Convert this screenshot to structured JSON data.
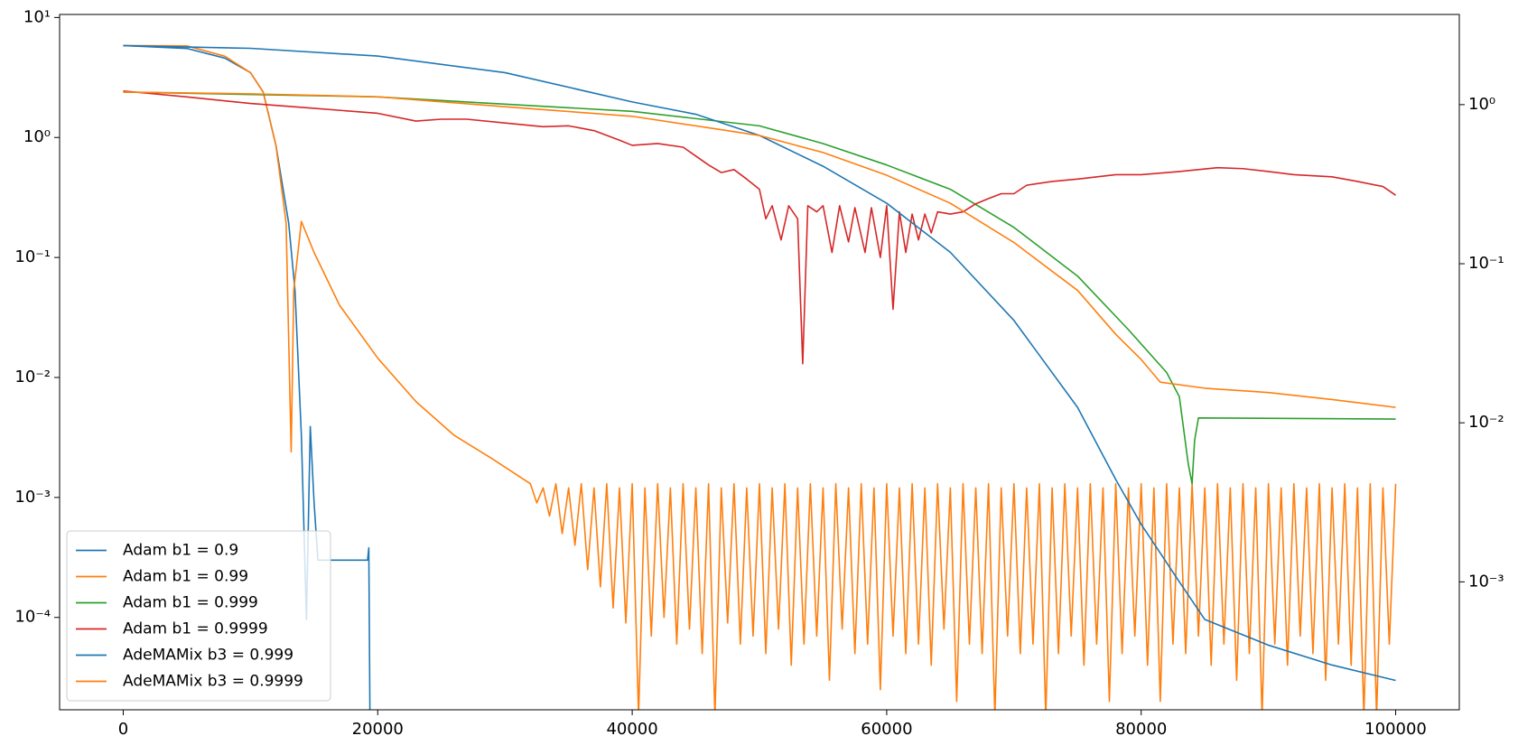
{
  "chart_data": {
    "type": "line",
    "xlim": [
      -5000,
      105000
    ],
    "xticks": [
      0,
      20000,
      40000,
      60000,
      80000,
      100000
    ],
    "yscale": "log",
    "ylim": [
      1.7e-05,
      10.6
    ],
    "yticks": [
      {
        "value": 0.0001,
        "label": "10⁻⁴"
      },
      {
        "value": 0.001,
        "label": "10⁻³"
      },
      {
        "value": 0.01,
        "label": "10⁻²"
      },
      {
        "value": 0.1,
        "label": "10⁻¹"
      },
      {
        "value": 1,
        "label": "10⁰"
      },
      {
        "value": 10,
        "label": "10¹"
      }
    ],
    "y2scale": "log",
    "y2lim": [
      0.000157,
      3.69
    ],
    "y2ticks": [
      {
        "value": 0.001,
        "label": "10⁻³"
      },
      {
        "value": 0.01,
        "label": "10⁻²"
      },
      {
        "value": 0.1,
        "label": "10⁻¹"
      },
      {
        "value": 1,
        "label": "10⁰"
      }
    ],
    "legend": "lower left",
    "series": [
      {
        "name": "Adam b1 = 0.9",
        "color": "#1f77b4",
        "x": [
          0,
          5000,
          8000,
          10000,
          11000,
          12000,
          13000,
          13500,
          14000,
          14400,
          14700,
          15000,
          15300,
          19200,
          19300,
          19400
        ],
        "values": [
          5.84,
          5.52,
          4.58,
          3.47,
          2.39,
          0.86,
          0.195,
          0.053,
          0.0033,
          9.6e-05,
          0.0039,
          0.0009,
          0.0003,
          0.0003,
          0.00038,
          1e-05
        ]
      },
      {
        "name": "Adam b1 = 0.99",
        "color": "#ff7f0e",
        "x": [
          0,
          5000,
          8000,
          10000,
          11000,
          12000,
          12800,
          13200,
          13400,
          14000,
          15000,
          17000,
          20000,
          23000,
          26000,
          29000,
          32000,
          32500,
          33000,
          33500,
          34000,
          34500,
          35000,
          35500,
          36000,
          36500,
          37000,
          37500,
          38000,
          38500,
          39000,
          39500,
          40000,
          40500,
          41000,
          41500,
          42000,
          42500,
          43000,
          43500,
          44000,
          44500,
          45000,
          45500,
          46000,
          46500,
          47000,
          47500,
          48000,
          48500,
          49000,
          49500,
          50000,
          50500,
          51000,
          51500,
          52000,
          52500,
          53000,
          53500,
          54000,
          54500,
          55000,
          55500,
          56000,
          56500,
          57000,
          57500,
          58000,
          58500,
          59000,
          59500,
          60000,
          60500,
          61000,
          61500,
          62000,
          62500,
          63000,
          63500,
          64000,
          64500,
          65000,
          65500,
          66000,
          66500,
          67000,
          67500,
          68000,
          68500,
          69000,
          69500,
          70000,
          70500,
          71000,
          71500,
          72000,
          72500,
          73000,
          73500,
          74000,
          74500,
          75000,
          75500,
          76000,
          76500,
          77000,
          77500,
          78000,
          78500,
          79000,
          79500,
          80000,
          80500,
          81000,
          81500,
          82000,
          82500,
          83000,
          83500,
          84000,
          84500,
          85000,
          85500,
          86000,
          86500,
          87000,
          87500,
          88000,
          88500,
          89000,
          89500,
          90000,
          90500,
          91000,
          91500,
          92000,
          92500,
          93000,
          93500,
          94000,
          94500,
          95000,
          95500,
          96000,
          96500,
          97000,
          97500,
          98000,
          98500,
          99000,
          99500,
          100000
        ],
        "values": [
          5.84,
          5.8,
          4.75,
          3.47,
          2.39,
          0.86,
          0.195,
          0.0024,
          0.053,
          0.2,
          0.11,
          0.04,
          0.0145,
          0.0063,
          0.0033,
          0.0021,
          0.0013,
          0.0009,
          0.0012,
          0.0007,
          0.0013,
          0.0005,
          0.0012,
          0.0004,
          0.0013,
          0.00025,
          0.0012,
          0.00018,
          0.0013,
          0.00012,
          0.0012,
          9e-05,
          0.0013,
          1.5e-05,
          0.0012,
          7e-05,
          0.0013,
          0.0001,
          0.0012,
          6e-05,
          0.0013,
          8e-05,
          0.0012,
          5e-05,
          0.0013,
          1.5e-05,
          0.0012,
          9e-05,
          0.0013,
          6e-05,
          0.0012,
          7e-05,
          0.0013,
          5e-05,
          0.0012,
          8e-05,
          0.0013,
          4e-05,
          0.0012,
          6e-05,
          0.0013,
          7e-05,
          0.0012,
          3e-05,
          0.0013,
          8e-05,
          0.0012,
          5e-05,
          0.0013,
          6e-05,
          0.0012,
          2.5e-05,
          0.0013,
          7e-05,
          0.0012,
          5e-05,
          0.0013,
          6e-05,
          0.0012,
          4e-05,
          0.0013,
          8e-05,
          0.0012,
          2e-05,
          0.0013,
          6e-05,
          0.0012,
          5e-05,
          0.0013,
          1.5e-05,
          0.0012,
          7e-05,
          0.0013,
          5e-05,
          0.0012,
          6e-05,
          0.0013,
          1.5e-05,
          0.0012,
          5e-05,
          0.0013,
          7e-05,
          0.0012,
          4e-05,
          0.0013,
          6e-05,
          0.0012,
          2e-05,
          0.0013,
          5e-05,
          0.0012,
          7e-05,
          0.0013,
          4e-05,
          0.0012,
          2e-05,
          0.0013,
          6e-05,
          0.0012,
          5e-05,
          0.0013,
          7e-05,
          0.0012,
          4e-05,
          0.0013,
          6e-05,
          0.0012,
          3e-05,
          0.0013,
          5e-05,
          0.0012,
          1.5e-05,
          0.0013,
          6e-05,
          0.0012,
          4e-05,
          0.0013,
          7e-05,
          0.0012,
          5e-05,
          0.0013,
          3e-05,
          0.0012,
          6e-05,
          0.0013,
          4e-05,
          0.0012,
          1.5e-05,
          0.0013,
          1.5e-05,
          0.0012,
          6e-05,
          0.0013
        ]
      },
      {
        "name": "Adam b1 = 0.999",
        "color": "#2ca02c",
        "x": [
          0,
          20000,
          40000,
          50000,
          55000,
          60000,
          65000,
          70000,
          75000,
          79000,
          82000,
          83000,
          83700,
          84000,
          84200,
          84500,
          100000
        ],
        "values": [
          2.39,
          2.18,
          1.65,
          1.25,
          0.89,
          0.59,
          0.37,
          0.178,
          0.07,
          0.025,
          0.011,
          0.0069,
          0.0019,
          0.0013,
          0.003,
          0.0046,
          0.0045
        ]
      },
      {
        "name": "Adam b1 = 0.9999",
        "color": "#d62728",
        "x": [
          0,
          5000,
          10000,
          15000,
          20000,
          23000,
          25000,
          27000,
          30000,
          33000,
          35000,
          37000,
          39000,
          40000,
          42000,
          44000,
          46000,
          47000,
          48000,
          49000,
          50000,
          50500,
          51000,
          51700,
          52300,
          53000,
          53400,
          53800,
          54500,
          55000,
          55700,
          56300,
          57000,
          57500,
          58300,
          58800,
          59500,
          60000,
          60500,
          61000,
          61500,
          62000,
          62500,
          63000,
          63500,
          64000,
          65000,
          66000,
          67000,
          68000,
          69000,
          70000,
          71000,
          73000,
          75000,
          78000,
          80000,
          83000,
          86000,
          88000,
          90000,
          92000,
          95000,
          97000,
          99000,
          100000
        ],
        "values": [
          2.44,
          2.18,
          1.92,
          1.75,
          1.59,
          1.37,
          1.42,
          1.42,
          1.32,
          1.23,
          1.25,
          1.14,
          0.95,
          0.86,
          0.89,
          0.83,
          0.59,
          0.51,
          0.54,
          0.45,
          0.37,
          0.21,
          0.27,
          0.14,
          0.27,
          0.21,
          0.013,
          0.27,
          0.24,
          0.27,
          0.11,
          0.27,
          0.135,
          0.26,
          0.11,
          0.26,
          0.1,
          0.27,
          0.037,
          0.24,
          0.11,
          0.23,
          0.14,
          0.23,
          0.16,
          0.24,
          0.23,
          0.24,
          0.28,
          0.31,
          0.34,
          0.34,
          0.4,
          0.43,
          0.45,
          0.49,
          0.49,
          0.52,
          0.56,
          0.55,
          0.52,
          0.49,
          0.47,
          0.43,
          0.39,
          0.33
        ]
      },
      {
        "name": "AdeMAMix b3 = 0.999",
        "color": "#1f77b4",
        "axis": "y2",
        "x": [
          0,
          10000,
          20000,
          30000,
          40000,
          45000,
          50000,
          55000,
          60000,
          65000,
          70000,
          75000,
          78000,
          80000,
          83000,
          85000,
          90000,
          95000,
          100000
        ],
        "values": [
          2.35,
          2.26,
          2.02,
          1.59,
          1.04,
          0.87,
          0.64,
          0.41,
          0.24,
          0.118,
          0.044,
          0.0125,
          0.0044,
          0.0023,
          0.001,
          0.00058,
          0.0004,
          0.0003,
          0.00024
        ]
      },
      {
        "name": "AdeMAMix b3 = 0.9999",
        "color": "#ff7f0e",
        "axis": "y2",
        "x": [
          0,
          10000,
          20000,
          30000,
          40000,
          50000,
          55000,
          60000,
          65000,
          70000,
          75000,
          78000,
          80000,
          81500,
          85000,
          90000,
          95000,
          100000
        ],
        "values": [
          1.2,
          1.17,
          1.12,
          0.97,
          0.845,
          0.64,
          0.5,
          0.36,
          0.24,
          0.136,
          0.068,
          0.036,
          0.025,
          0.018,
          0.0165,
          0.0155,
          0.014,
          0.0125
        ]
      }
    ]
  }
}
